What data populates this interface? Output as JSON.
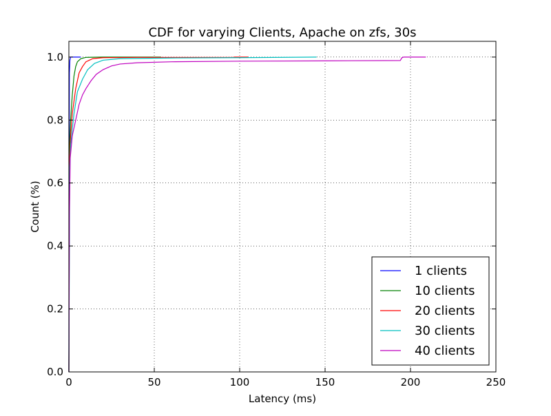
{
  "chart_data": {
    "type": "line",
    "title": "CDF for varying Clients, Apache on zfs, 30s",
    "xlabel": "Latency (ms)",
    "ylabel": "Count (%)",
    "xlim": [
      0,
      250
    ],
    "ylim": [
      0,
      1.05
    ],
    "xticks": [
      "0",
      "50",
      "100",
      "150",
      "200",
      "250"
    ],
    "yticks": [
      "0.0",
      "0.2",
      "0.4",
      "0.6",
      "0.8",
      "1.0"
    ],
    "grid": true,
    "legend_position": "lower-right",
    "series": [
      {
        "name": "1 clients",
        "color": "#0000ff",
        "points": [
          [
            0,
            0
          ],
          [
            0.1,
            0.6
          ],
          [
            0.3,
            0.95
          ],
          [
            0.6,
            0.99
          ],
          [
            1,
            1.0
          ],
          [
            7,
            1.0
          ]
        ]
      },
      {
        "name": "10 clients",
        "color": "#008000",
        "points": [
          [
            0,
            0
          ],
          [
            0.3,
            0.7
          ],
          [
            1,
            0.8
          ],
          [
            2,
            0.88
          ],
          [
            3,
            0.94
          ],
          [
            4,
            0.97
          ],
          [
            5,
            0.985
          ],
          [
            7,
            0.995
          ],
          [
            10,
            0.999
          ],
          [
            20,
            1.0
          ],
          [
            54,
            1.0
          ]
        ]
      },
      {
        "name": "20 clients",
        "color": "#ff0000",
        "points": [
          [
            0,
            0
          ],
          [
            0.4,
            0.68
          ],
          [
            1,
            0.75
          ],
          [
            2,
            0.82
          ],
          [
            4,
            0.9
          ],
          [
            6,
            0.95
          ],
          [
            8,
            0.97
          ],
          [
            10,
            0.985
          ],
          [
            14,
            0.995
          ],
          [
            20,
            0.998
          ],
          [
            40,
            0.999
          ],
          [
            96,
            0.999
          ],
          [
            97,
            1.0
          ],
          [
            105,
            1.0
          ]
        ]
      },
      {
        "name": "30 clients",
        "color": "#00bfbf",
        "points": [
          [
            0,
            0
          ],
          [
            0.5,
            0.65
          ],
          [
            1,
            0.72
          ],
          [
            3,
            0.82
          ],
          [
            5,
            0.89
          ],
          [
            8,
            0.93
          ],
          [
            11,
            0.96
          ],
          [
            15,
            0.98
          ],
          [
            20,
            0.99
          ],
          [
            30,
            0.995
          ],
          [
            60,
            0.997
          ],
          [
            100,
            0.998
          ],
          [
            145,
            1.0
          ]
        ]
      },
      {
        "name": "40 clients",
        "color": "#bf00bf",
        "points": [
          [
            0,
            0
          ],
          [
            0.3,
            0.5
          ],
          [
            0.8,
            0.68
          ],
          [
            2,
            0.75
          ],
          [
            4,
            0.8
          ],
          [
            6,
            0.85
          ],
          [
            8,
            0.88
          ],
          [
            10,
            0.9
          ],
          [
            13,
            0.925
          ],
          [
            16,
            0.945
          ],
          [
            20,
            0.96
          ],
          [
            25,
            0.972
          ],
          [
            30,
            0.978
          ],
          [
            40,
            0.982
          ],
          [
            60,
            0.985
          ],
          [
            100,
            0.987
          ],
          [
            150,
            0.988
          ],
          [
            194,
            0.989
          ],
          [
            195,
            0.998
          ],
          [
            196,
            1.0
          ],
          [
            209,
            1.0
          ]
        ]
      }
    ]
  }
}
